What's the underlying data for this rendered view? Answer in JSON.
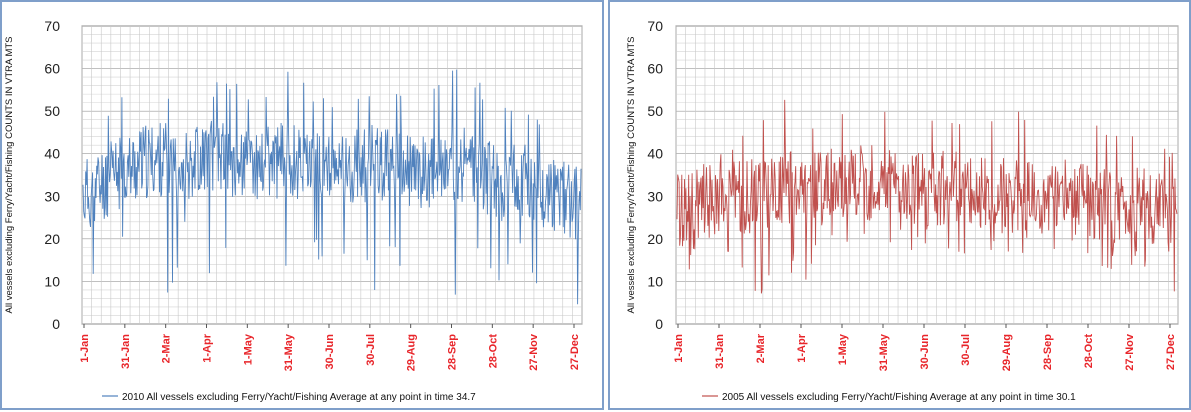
{
  "chart_data": [
    {
      "type": "line",
      "ylabel": "All vessels excluding Ferry/Yacht/Fishing COUNTS IN VTRA MTS",
      "ylim": [
        0,
        70
      ],
      "yticks": [
        0,
        10,
        20,
        30,
        40,
        50,
        60,
        70
      ],
      "xticks": [
        "1-Jan",
        "31-Jan",
        "2-Mar",
        "1-Apr",
        "1-May",
        "31-May",
        "30-Jun",
        "30-Jul",
        "29-Aug",
        "28-Sep",
        "28-Oct",
        "27-Nov",
        "27-Dec"
      ],
      "grid": true,
      "legend": "bottom",
      "series": [
        {
          "name": "2010 All vessels excluding Ferry/Yacht/Fishing Average at any point in time  34.7",
          "color": "#4f81bd",
          "x": [
            "1-Jan",
            "15-Jan",
            "31-Jan",
            "15-Feb",
            "2-Mar",
            "15-Mar",
            "1-Apr",
            "15-Apr",
            "1-May",
            "15-May",
            "31-May",
            "15-Jun",
            "30-Jun",
            "15-Jul",
            "30-Jul",
            "15-Aug",
            "29-Aug",
            "15-Sep",
            "28-Sep",
            "15-Oct",
            "28-Oct",
            "15-Nov",
            "27-Nov",
            "15-Dec",
            "27-Dec"
          ],
          "values": [
            30,
            33,
            36,
            38,
            39,
            38,
            40,
            39,
            37,
            38,
            39,
            37,
            36,
            37,
            38,
            37,
            35,
            37,
            38,
            36,
            33,
            34,
            32,
            30,
            28
          ],
          "min": [
            3,
            20,
            18,
            22,
            5,
            20,
            6,
            18,
            8,
            15,
            10,
            18,
            4,
            20,
            6,
            15,
            10,
            18,
            6,
            18,
            10,
            14,
            8,
            12,
            2
          ],
          "max": [
            44,
            50,
            54,
            52,
            57,
            55,
            56,
            58,
            55,
            57,
            61,
            55,
            54,
            55,
            56,
            55,
            53,
            56,
            62,
            58,
            53,
            54,
            50,
            48,
            40
          ]
        }
      ]
    },
    {
      "type": "line",
      "ylabel": "All vessels excluding Ferry/Yacht/Fishing COUNTS IN VTRA MTS",
      "ylim": [
        0,
        70
      ],
      "yticks": [
        0,
        10,
        20,
        30,
        40,
        50,
        60,
        70
      ],
      "xticks": [
        "1-Jan",
        "31-Jan",
        "2-Mar",
        "1-Apr",
        "1-May",
        "31-May",
        "30-Jun",
        "30-Jul",
        "29-Aug",
        "28-Sep",
        "28-Oct",
        "27-Nov",
        "27-Dec"
      ],
      "grid": true,
      "legend": "bottom",
      "series": [
        {
          "name": "2005 All vessels excluding Ferry/Yacht/Fishing Average at any point in time  30.1",
          "color": "#c0504d",
          "x": [
            "1-Jan",
            "15-Jan",
            "31-Jan",
            "15-Feb",
            "2-Mar",
            "15-Mar",
            "1-Apr",
            "15-Apr",
            "1-May",
            "15-May",
            "31-May",
            "15-Jun",
            "30-Jun",
            "15-Jul",
            "30-Jul",
            "15-Aug",
            "29-Aug",
            "15-Sep",
            "28-Sep",
            "15-Oct",
            "28-Oct",
            "15-Nov",
            "27-Nov",
            "15-Dec",
            "27-Dec"
          ],
          "values": [
            27,
            28,
            29,
            30,
            30,
            32,
            31,
            32,
            34,
            33,
            33,
            32,
            31,
            32,
            31,
            30,
            30,
            29,
            29,
            30,
            29,
            28,
            28,
            27,
            25
          ],
          "min": [
            10,
            14,
            15,
            12,
            2,
            14,
            9,
            15,
            18,
            16,
            18,
            16,
            14,
            15,
            13,
            15,
            14,
            12,
            12,
            15,
            14,
            12,
            12,
            14,
            4
          ],
          "max": [
            36,
            40,
            42,
            46,
            47,
            55,
            50,
            48,
            52,
            51,
            50,
            49,
            48,
            51,
            47,
            50,
            48,
            53,
            47,
            50,
            51,
            46,
            48,
            46,
            40
          ]
        }
      ]
    }
  ]
}
